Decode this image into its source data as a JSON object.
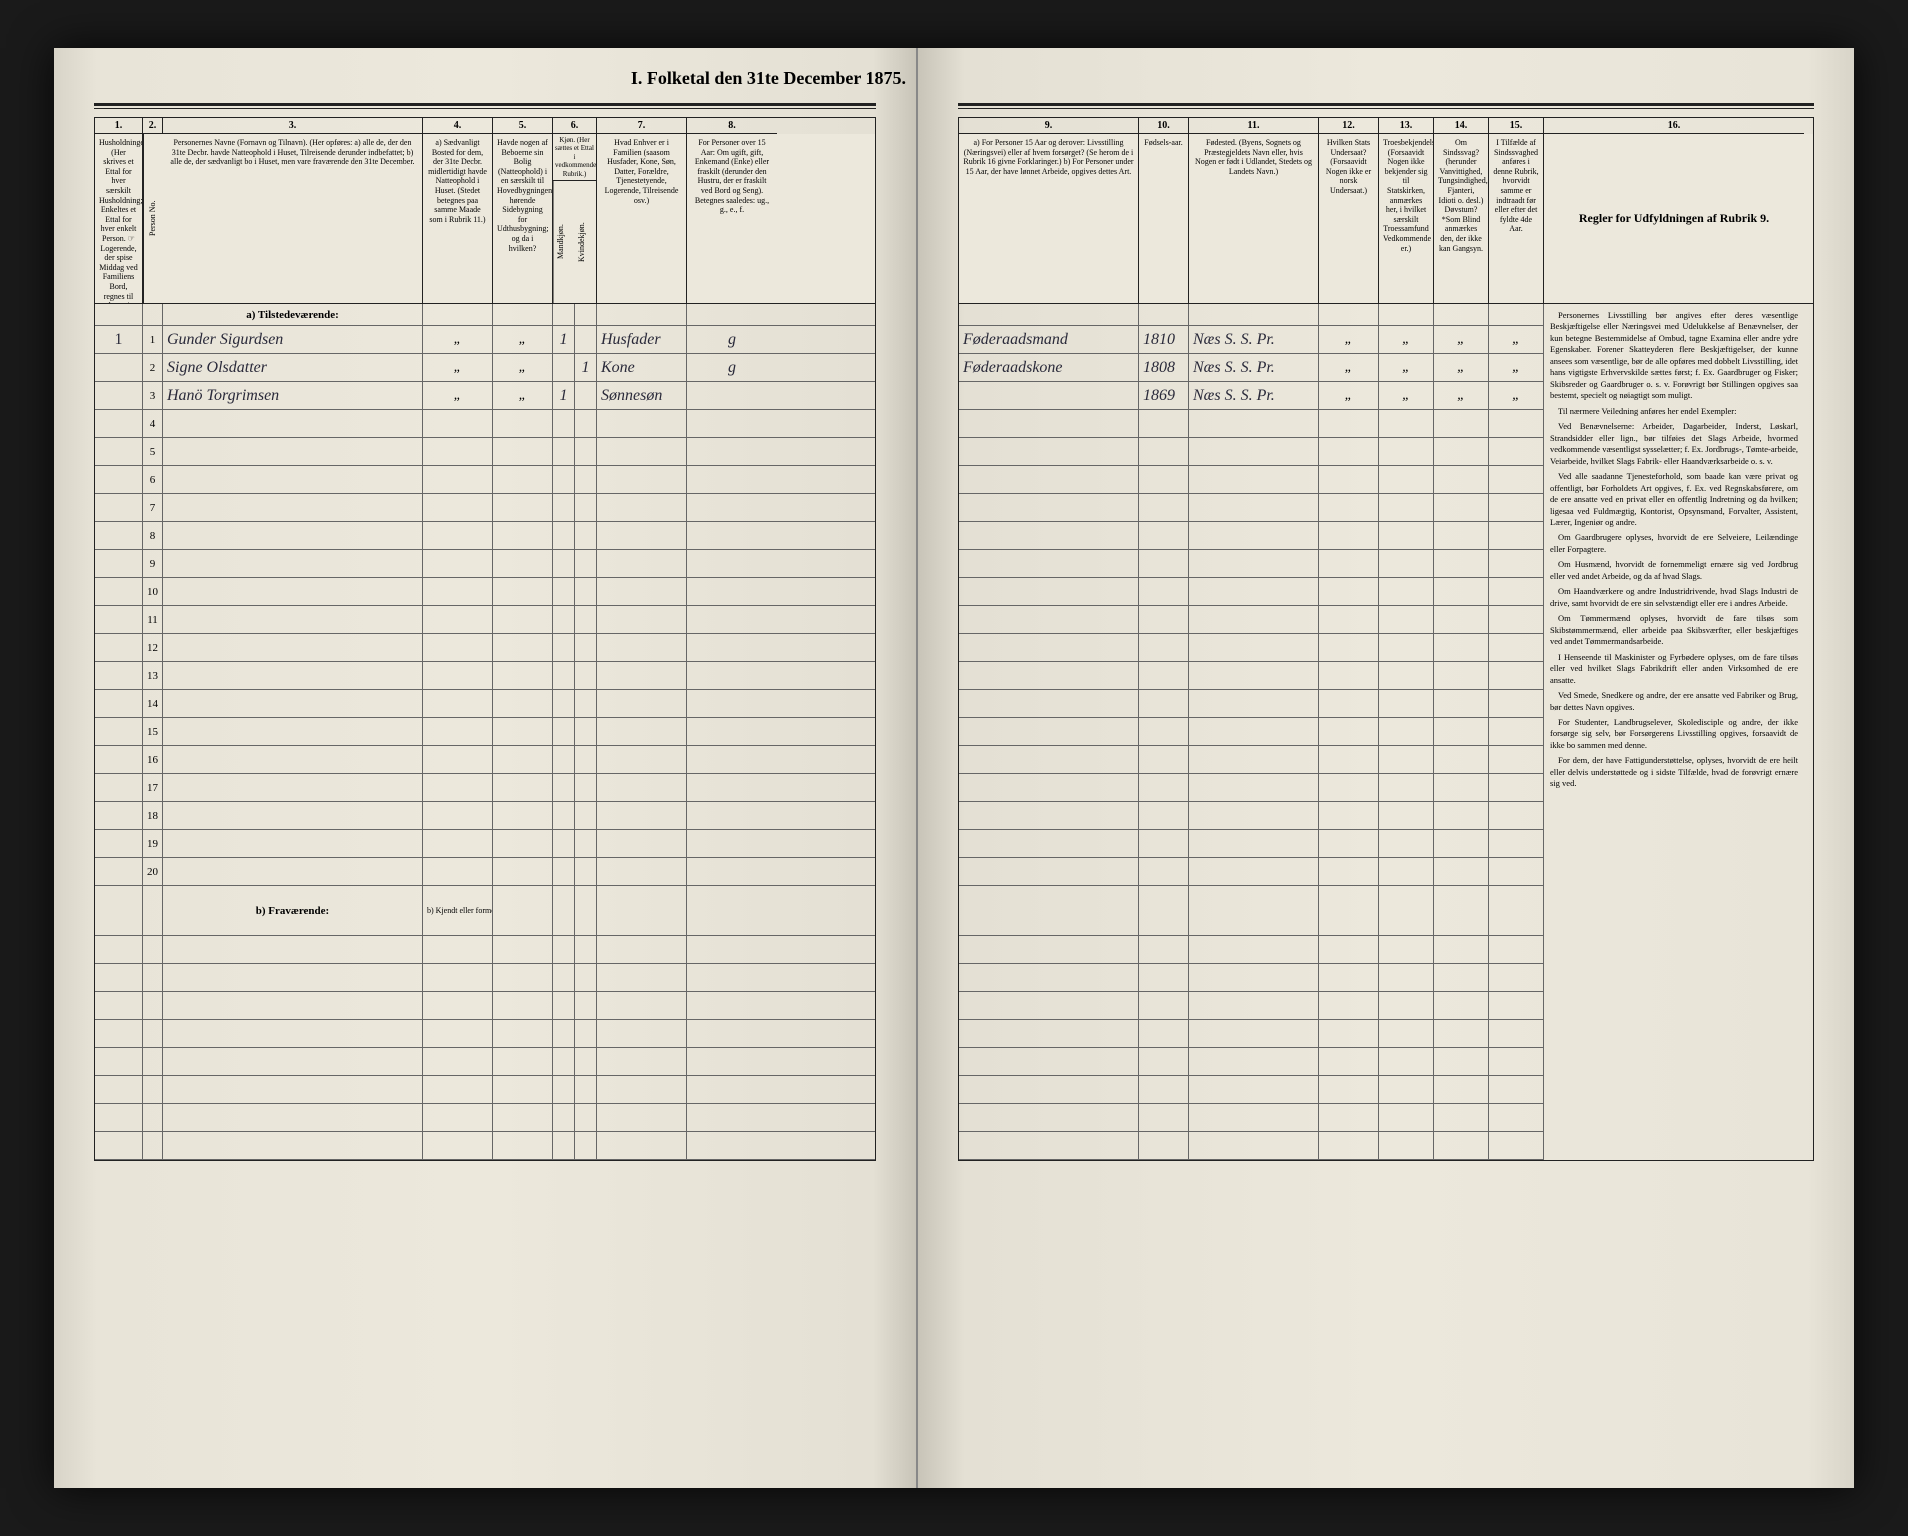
{
  "title": "I. Folketal den 31te December 1875.",
  "columns_left": {
    "c1": {
      "num": "1.",
      "head": "Husholdninger.\n(Her skrives et Ettal for hver særskilt Husholdning; Enkeltes et Ettal for hver enkelt Person.\n☞ Logerende, der spise Middag ved Familiens Bord, regnes til denne.)"
    },
    "c2": {
      "num": "2.",
      "head": "Person No."
    },
    "c3": {
      "num": "3.",
      "head": "Personernes Navne (Fornavn og Tilnavn).\n(Her opføres:\na) alle de, der den 31te Decbr. havde Natteophold i Huset, Tilreisende derunder indbefattet;\nb) alle de, der sædvanligt bo i Huset, men vare fraværende den 31te December."
    },
    "c4": {
      "num": "4.",
      "head": "a) Sædvanligt Bosted for dem, der 31te Decbr. midlertidigt havde Natteophold i Huset.\n(Stedet betegnes paa samme Maade som i Rubrik 11.)"
    },
    "c5": {
      "num": "5.",
      "head": "Havde nogen af Beboerne sin Bolig (Natteophold) i en særskilt til Hovedbygningen hørende Sidebygning for Udthusbygning; og da i hvilken?"
    },
    "c6": {
      "num": "6.",
      "head": "Kjøn.\n(Her sættes et Ettal i vedkommende Rubrik.)"
    },
    "c6a": {
      "head": "Mandkjøn."
    },
    "c6b": {
      "head": "Kvindekjøn."
    },
    "c7": {
      "num": "7.",
      "head": "Hvad Enhver er i Familien\n(saasom Husfader, Kone, Søn, Datter, Forældre, Tjenestetyende, Logerende, Tilreisende osv.)"
    },
    "c8": {
      "num": "8.",
      "head": "For Personer over 15 Aar: Om ugift, gift, Enkemand (Enke) eller fraskilt (derunder den Hustru, der er fraskilt ved Bord og Seng).\nBetegnes saaledes: ug., g., e., f."
    }
  },
  "columns_right": {
    "c9": {
      "num": "9.",
      "head": "a) For Personer 15 Aar og derover: Livsstilling (Næringsvei) eller af hvem forsørget? (Se herom de i Rubrik 16 givne Forklaringer.)\nb) For Personer under 15 Aar, der have lønnet Arbeide, opgives dettes Art."
    },
    "c10": {
      "num": "10.",
      "head": "Fødsels-aar."
    },
    "c11": {
      "num": "11.",
      "head": "Fødested.\n(Byens, Sognets og Præstegjeldets Navn eller, hvis Nogen er født i Udlandet, Stedets og Landets Navn.)"
    },
    "c12": {
      "num": "12.",
      "head": "Hvilken Stats Undersaat?\n(Forsaavidt Nogen ikke er norsk Undersaat.)"
    },
    "c13": {
      "num": "13.",
      "head": "Troesbekjendelse.\n(Forsaavidt Nogen ikke bekjender sig til Statskirken, anmærkes her, i hvilket særskilt Troessamfund Vedkommende er.)"
    },
    "c14": {
      "num": "14.",
      "head": "Om Sindssvag? (herunder Vanvittighed, Tungsindighed, Fjanteri, Idioti o. desl.)\nDøvstum? *Som Blind anmærkes den, der ikke kan Gangsyn."
    },
    "c15": {
      "num": "15.",
      "head": "I Tilfælde af Sindssvaghed anføres i denne Rubrik, hvorvidt samme er indtraadt før eller efter det fyldte 4de Aar."
    },
    "c16": {
      "num": "16.",
      "head": "Regler for Udfyldningen af Rubrik 9."
    }
  },
  "section_a": "a) Tilstedeværende:",
  "section_b": "b) Fraværende:",
  "section_b_note": "b) Kjendt eller formodet Opholdssted.",
  "rows": [
    {
      "n": "1",
      "hh": "1",
      "name": "Gunder Sigurdsen",
      "c4": "„",
      "c5": "„",
      "m": "1",
      "k": "",
      "fam": "Husfader",
      "civ": "g",
      "liv": "Føderaadsmand",
      "aar": "1810",
      "sted": "Næs S. S. Pr.",
      "u": "„",
      "t": "„",
      "s": "„",
      "ss": "„"
    },
    {
      "n": "2",
      "hh": "",
      "name": "Signe Olsdatter",
      "c4": "„",
      "c5": "„",
      "m": "",
      "k": "1",
      "fam": "Kone",
      "civ": "g",
      "liv": "Føderaadskone",
      "aar": "1808",
      "sted": "Næs S. S. Pr.",
      "u": "„",
      "t": "„",
      "s": "„",
      "ss": "„"
    },
    {
      "n": "3",
      "hh": "",
      "name": "Hanö Torgrimsen",
      "c4": "„",
      "c5": "„",
      "m": "1",
      "k": "",
      "fam": "Sønnesøn",
      "civ": "",
      "liv": "",
      "aar": "1869",
      "sted": "Næs S. S. Pr.",
      "u": "„",
      "t": "„",
      "s": "„",
      "ss": "„"
    }
  ],
  "empty_rows": [
    "4",
    "5",
    "6",
    "7",
    "8",
    "9",
    "10",
    "11",
    "12",
    "13",
    "14",
    "15",
    "16",
    "17",
    "18",
    "19",
    "20"
  ],
  "rules_text": [
    "Personernes Livsstilling bør angives efter deres væsentlige Beskjæftigelse eller Næringsvei med Udelukkelse af Benævnelser, der kun betegne Bestemmidelse af Ombud, tagne Examina eller andre ydre Egenskaber. Forener Skatteyderen flere Beskjæftigelser, der kunne ansees som væsentlige, bør de alle opføres med dobbelt Livsstilling, idet hans vigtigste Erhvervskilde sættes først; f. Ex. Gaardbruger og Fisker; Skibsreder og Gaardbruger o. s. v. Forøvrigt bør Stillingen opgives saa bestemt, specielt og nøiagtigt som muligt.",
    "Til nærmere Veiledning anføres her endel Exempler:",
    "Ved Benævnelserne: Arbeider, Dagarbeider, Inderst, Løskarl, Strandsidder eller lign., bør tilføies det Slags Arbeide, hvormed vedkommende væsentligst sysselætter; f. Ex. Jordbrugs-, Tømte-arbeide, Veiarbeide, hvilket Slags Fabrik- eller Haandværksarbeide o. s. v.",
    "Ved alle saadanne Tjenesteforhold, som baade kan være privat og offentligt, bør Forholdets Art opgives, f. Ex. ved Regnskabsførere, om de ere ansatte ved en privat eller en offentlig Indretning og da hvilken; ligesaa ved Fuldmægtig, Kontorist, Opsynsmand, Forvalter, Assistent, Lærer, Ingeniør og andre.",
    "Om Gaardbrugere oplyses, hvorvidt de ere Selveiere, Leilændinge eller Forpagtere.",
    "Om Husmænd, hvorvidt de fornemmeligt ernære sig ved Jordbrug eller ved andet Arbeide, og da af hvad Slags.",
    "Om Haandværkere og andre Industridrivende, hvad Slags Industri de drive, samt hvorvidt de ere sin selvstændigt eller ere i andres Arbeide.",
    "Om Tømmermænd oplyses, hvorvidt de fare tilsøs som Skibstømmermænd, eller arbeide paa Skibsværfter, eller beskjæftiges ved andet Tømmermandsarbeide.",
    "I Henseende til Maskinister og Fyrbødere oplyses, om de fare tilsøs eller ved hvilket Slags Fabrikdrift eller anden Virksomhed de ere ansatte.",
    "Ved Smede, Snedkere og andre, der ere ansatte ved Fabriker og Brug, bør dettes Navn opgives.",
    "For Studenter, Landbrugselever, Skoledisciple og andre, der ikke forsørge sig selv, bør Forsørgerens Livsstilling opgives, forsaavidt de ikke bo sammen med denne.",
    "For dem, der have Fattigunderstøttelse, oplyses, hvorvidt de ere heilt eller delvis understøttede og i sidste Tilfælde, hvad de forøvrigt ernære sig ved."
  ]
}
